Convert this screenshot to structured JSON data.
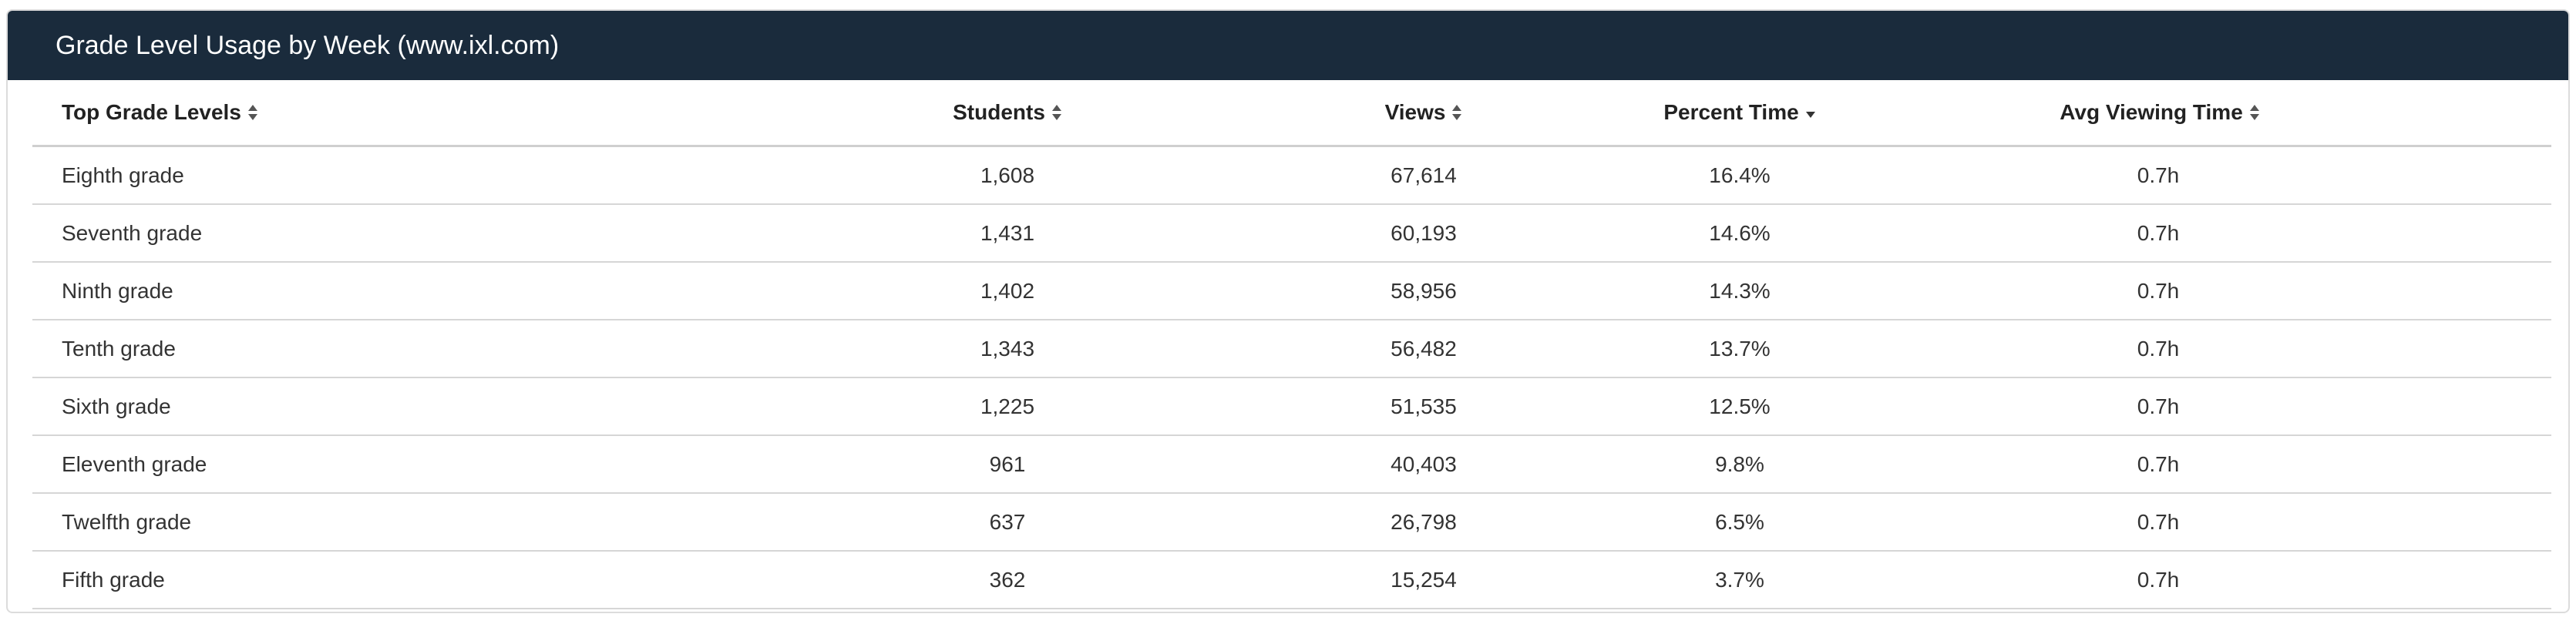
{
  "panel": {
    "title": "Grade Level Usage by Week (www.ixl.com)"
  },
  "table": {
    "columns": [
      {
        "label": "Top Grade Levels",
        "sort": "none"
      },
      {
        "label": "Students",
        "sort": "none"
      },
      {
        "label": "Views",
        "sort": "none"
      },
      {
        "label": "Percent Time",
        "sort": "desc"
      },
      {
        "label": "Avg Viewing Time",
        "sort": "none"
      }
    ],
    "rows": [
      [
        "Eighth grade",
        "1,608",
        "67,614",
        "16.4%",
        "0.7h"
      ],
      [
        "Seventh grade",
        "1,431",
        "60,193",
        "14.6%",
        "0.7h"
      ],
      [
        "Ninth grade",
        "1,402",
        "58,956",
        "14.3%",
        "0.7h"
      ],
      [
        "Tenth grade",
        "1,343",
        "56,482",
        "13.7%",
        "0.7h"
      ],
      [
        "Sixth grade",
        "1,225",
        "51,535",
        "12.5%",
        "0.7h"
      ],
      [
        "Eleventh grade",
        "961",
        "40,403",
        "9.8%",
        "0.7h"
      ],
      [
        "Twelfth grade",
        "637",
        "26,798",
        "6.5%",
        "0.7h"
      ],
      [
        "Fifth grade",
        "362",
        "15,254",
        "3.7%",
        "0.7h"
      ]
    ]
  },
  "colors": {
    "header_bg": "#1a2b3c",
    "header_text": "#ffffff",
    "body_text": "#333333",
    "divider": "#d6d6d6"
  },
  "icons": {
    "sortable": "sort-both-icon",
    "sorted_desc": "sort-desc-icon"
  }
}
